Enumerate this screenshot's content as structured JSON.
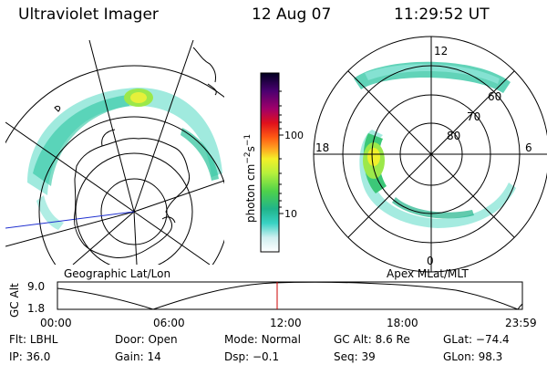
{
  "header": {
    "instrument": "Ultraviolet Imager",
    "date": "12 Aug 07",
    "time": "11:29:52 UT"
  },
  "left_panel": {
    "caption": "Geographic Lat/Lon"
  },
  "right_panel": {
    "caption": "Apex MLat/MLT",
    "mlt_labels": {
      "top": "12",
      "bottom": "0",
      "left": "18",
      "right": "6"
    },
    "lat_labels": [
      "60",
      "70",
      "80"
    ]
  },
  "colorbar": {
    "unit_label": "photon cm",
    "unit_sup1": "−2",
    "unit_mid": "s",
    "unit_sup2": "−1",
    "ticks": [
      "100",
      "10"
    ]
  },
  "timeline": {
    "ylabel": "GC Alt",
    "y_ticks": [
      "9.0",
      "1.8"
    ],
    "x_ticks": [
      "00:00",
      "06:00",
      "12:00",
      "18:00",
      "23:59"
    ],
    "marker_color": "#cc0000"
  },
  "info": {
    "flt_label": "Flt:",
    "flt_value": "LBHL",
    "ip_label": "IP:",
    "ip_value": "36.0",
    "door_label": "Door:",
    "door_value": "Open",
    "gain_label": "Gain:",
    "gain_value": "14",
    "mode_label": "Mode:",
    "mode_value": "Normal",
    "dsp_label": "Dsp:",
    "dsp_value": "−0.1",
    "gcalt_label": "GC Alt:",
    "gcalt_value": "8.6 Re",
    "seq_label": "Seq:",
    "seq_value": "39",
    "glat_label": "GLat:",
    "glat_value": "−74.4",
    "glon_label": "GLon:",
    "glon_value": "98.3"
  }
}
